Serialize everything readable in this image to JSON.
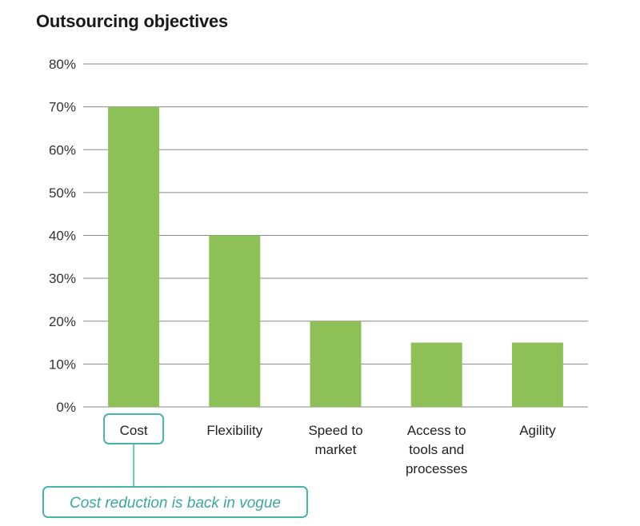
{
  "title": "Outsourcing objectives",
  "colors": {
    "bar": "#8dc057",
    "highlight": "#49b4aa",
    "callout_text": "#3aa89f"
  },
  "chart_data": {
    "type": "bar",
    "title": "Outsourcing objectives",
    "categories": [
      [
        "Cost"
      ],
      [
        "Flexibility"
      ],
      [
        "Speed to",
        "market"
      ],
      [
        "Access to",
        "tools and",
        "processes"
      ],
      [
        "Agility"
      ]
    ],
    "values": [
      70,
      40,
      20,
      15,
      15
    ],
    "ylim": [
      0,
      80
    ],
    "yticks": [
      0,
      10,
      20,
      30,
      40,
      50,
      60,
      70,
      80
    ],
    "ytick_labels": [
      "0%",
      "10%",
      "20%",
      "30%",
      "40%",
      "50%",
      "60%",
      "70%",
      "80%"
    ],
    "grid": true,
    "xlabel": "",
    "ylabel": "",
    "highlight_index": 0,
    "annotation": "Cost reduction is back in vogue"
  }
}
